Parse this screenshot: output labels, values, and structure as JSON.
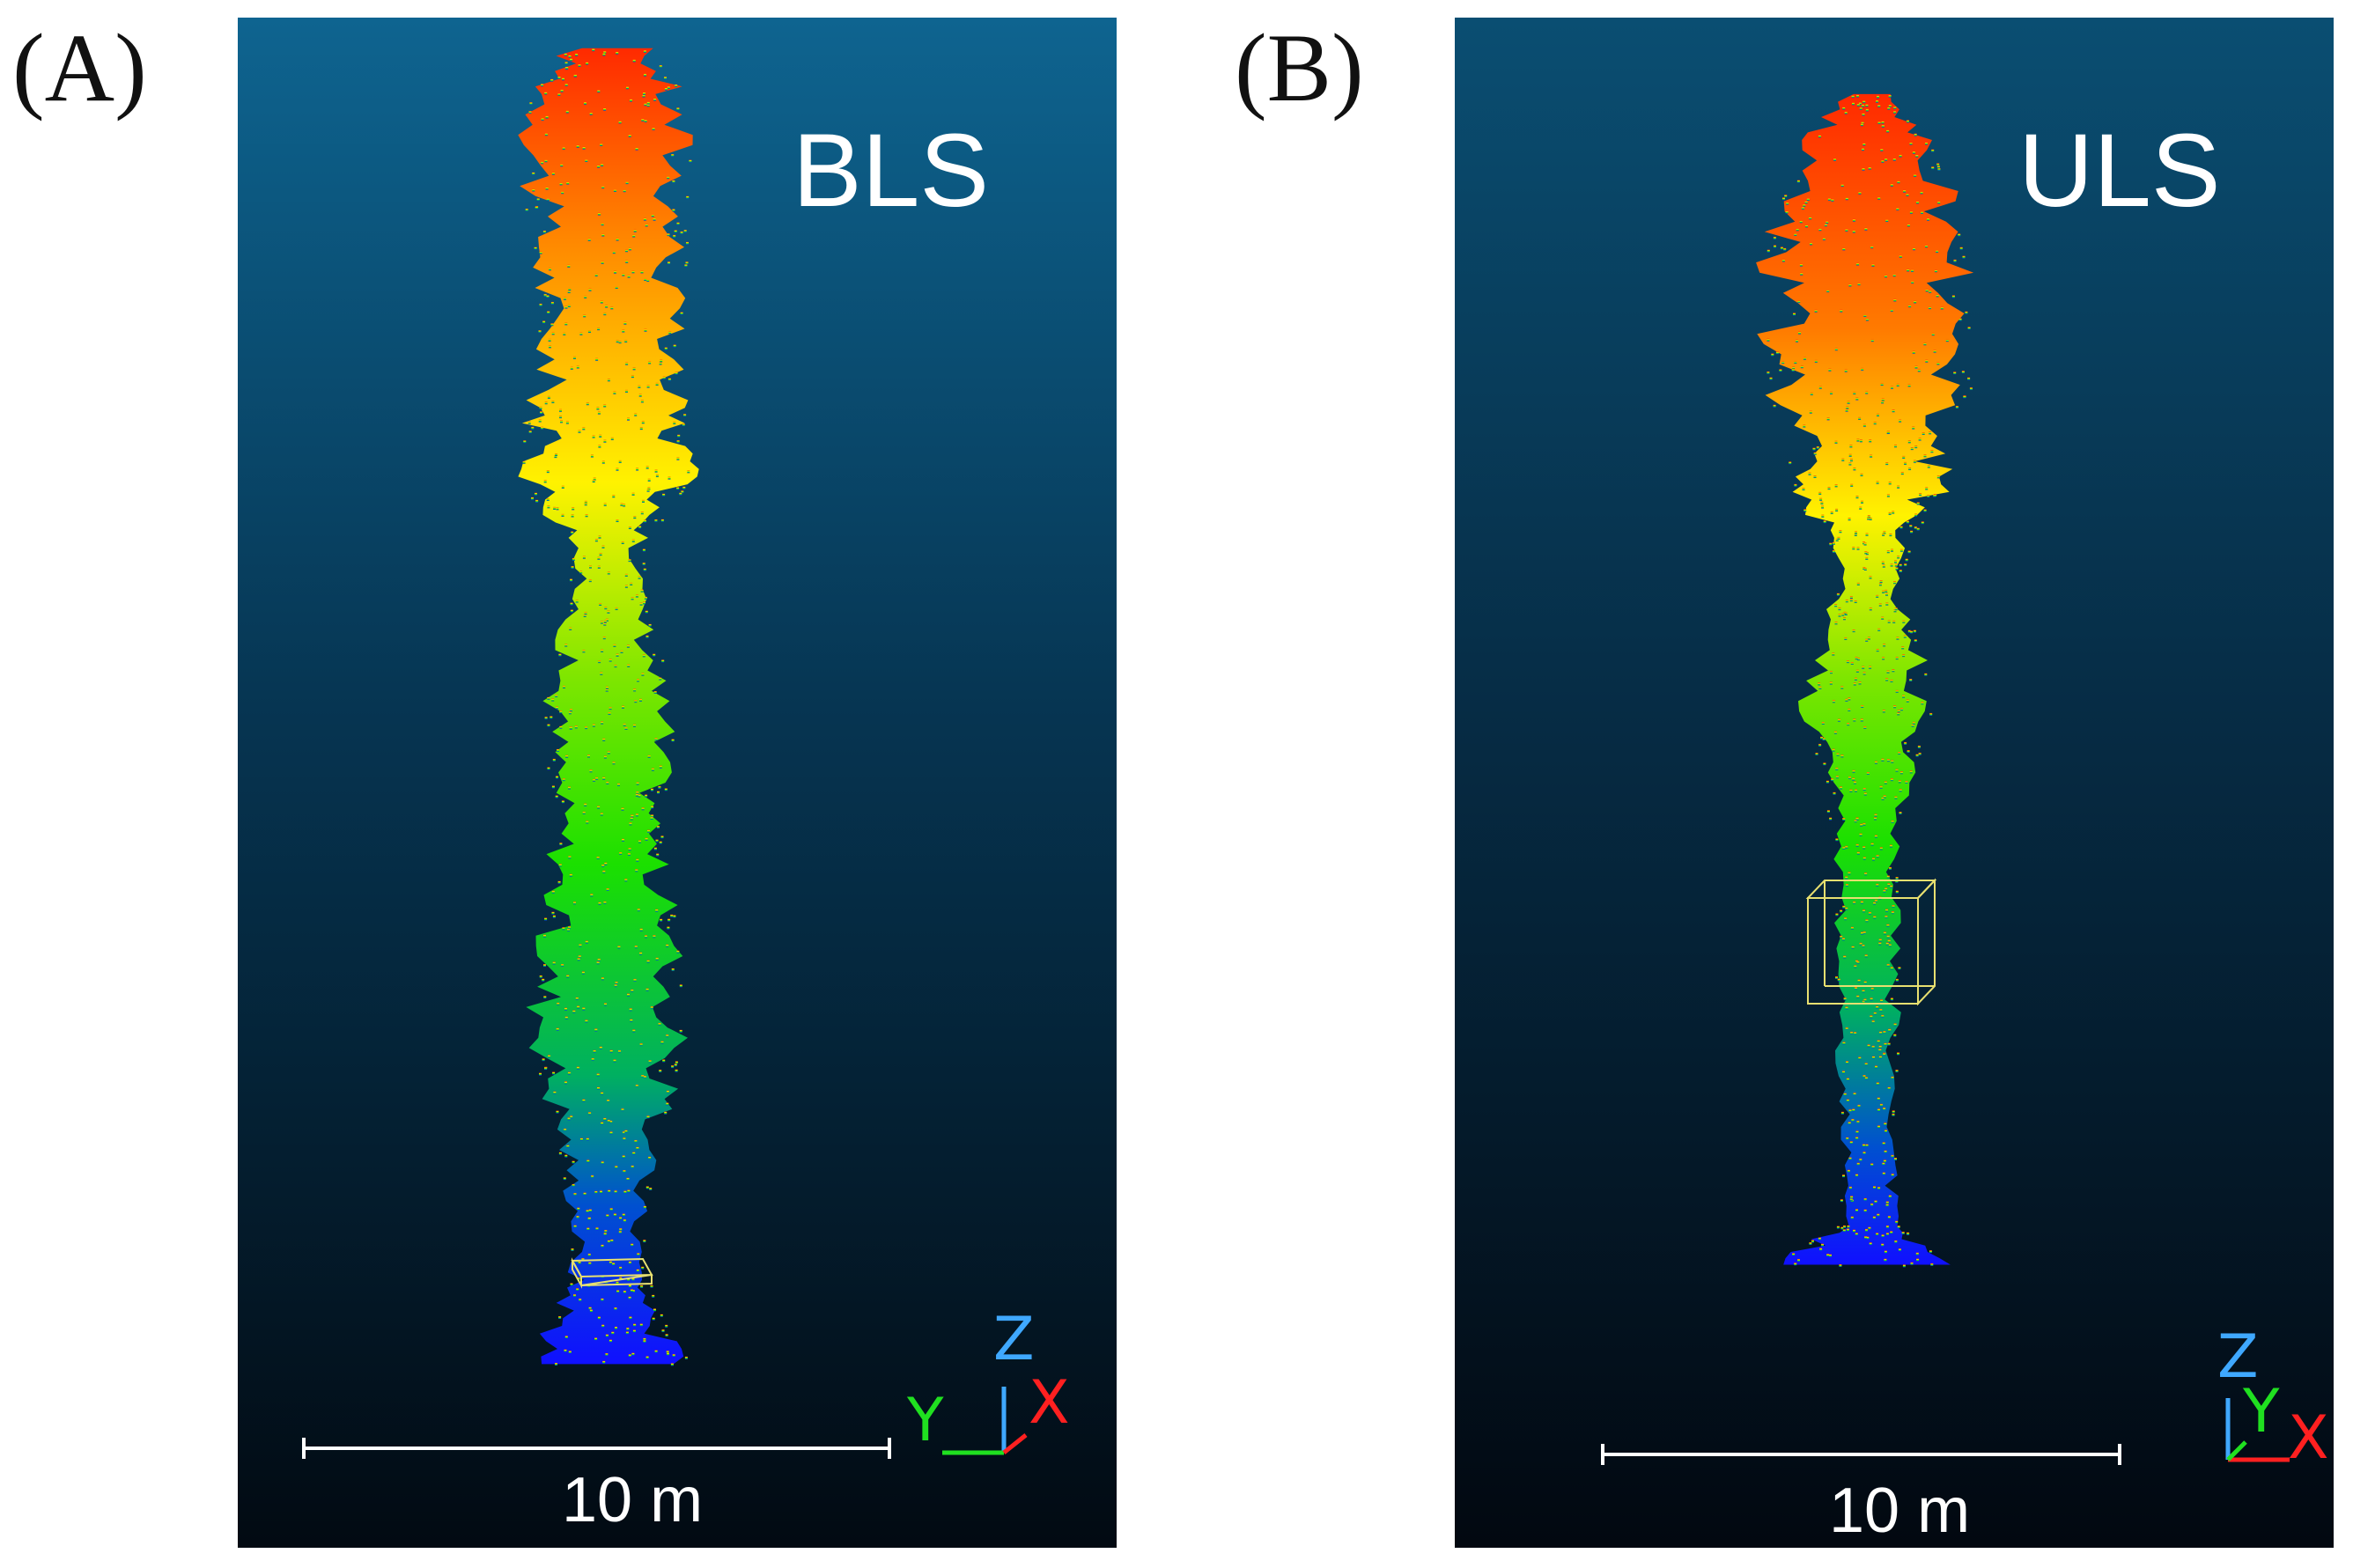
{
  "panels": [
    {
      "letter": "(A)",
      "sensor": "BLS",
      "scale_label": "10 m",
      "axes": {
        "z": "Z",
        "y": "Y",
        "x": "X"
      },
      "cloud": [
        {
          "y": 0.02,
          "w": 0.08
        },
        {
          "y": 0.05,
          "w": 0.14
        },
        {
          "y": 0.09,
          "w": 0.16
        },
        {
          "y": 0.13,
          "w": 0.15
        },
        {
          "y": 0.17,
          "w": 0.14
        },
        {
          "y": 0.21,
          "w": 0.13
        },
        {
          "y": 0.25,
          "w": 0.14
        },
        {
          "y": 0.28,
          "w": 0.16
        },
        {
          "y": 0.31,
          "w": 0.15
        },
        {
          "y": 0.34,
          "w": 0.07
        },
        {
          "y": 0.38,
          "w": 0.07
        },
        {
          "y": 0.42,
          "w": 0.1
        },
        {
          "y": 0.46,
          "w": 0.12
        },
        {
          "y": 0.5,
          "w": 0.11
        },
        {
          "y": 0.54,
          "w": 0.1
        },
        {
          "y": 0.58,
          "w": 0.12
        },
        {
          "y": 0.62,
          "w": 0.14
        },
        {
          "y": 0.66,
          "w": 0.14
        },
        {
          "y": 0.7,
          "w": 0.12
        },
        {
          "y": 0.74,
          "w": 0.09
        },
        {
          "y": 0.78,
          "w": 0.07
        },
        {
          "y": 0.82,
          "w": 0.07
        },
        {
          "y": 0.85,
          "w": 0.1
        },
        {
          "y": 0.88,
          "w": 0.15
        }
      ]
    },
    {
      "letter": "(B)",
      "sensor": "ULS",
      "scale_label": "10 m",
      "axes": {
        "z": "Z",
        "y": "Y",
        "x": "X"
      },
      "cloud": [
        {
          "y": 0.05,
          "w": 0.04
        },
        {
          "y": 0.08,
          "w": 0.12
        },
        {
          "y": 0.12,
          "w": 0.17
        },
        {
          "y": 0.16,
          "w": 0.19
        },
        {
          "y": 0.2,
          "w": 0.2
        },
        {
          "y": 0.24,
          "w": 0.19
        },
        {
          "y": 0.28,
          "w": 0.14
        },
        {
          "y": 0.31,
          "w": 0.15
        },
        {
          "y": 0.34,
          "w": 0.08
        },
        {
          "y": 0.38,
          "w": 0.06
        },
        {
          "y": 0.42,
          "w": 0.11
        },
        {
          "y": 0.46,
          "w": 0.12
        },
        {
          "y": 0.5,
          "w": 0.08
        },
        {
          "y": 0.55,
          "w": 0.06
        },
        {
          "y": 0.6,
          "w": 0.06
        },
        {
          "y": 0.65,
          "w": 0.06
        },
        {
          "y": 0.7,
          "w": 0.05
        },
        {
          "y": 0.75,
          "w": 0.05
        },
        {
          "y": 0.79,
          "w": 0.06
        },
        {
          "y": 0.815,
          "w": 0.19
        }
      ]
    }
  ]
}
